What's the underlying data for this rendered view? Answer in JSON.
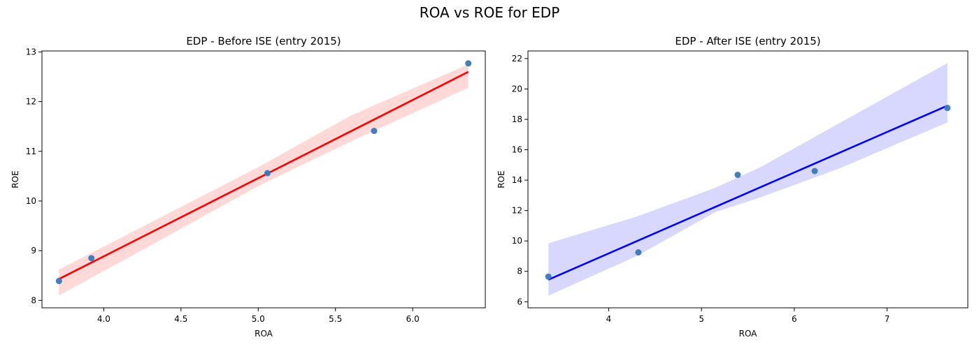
{
  "figure": {
    "title": "ROA vs ROE for EDP"
  },
  "chart_data": [
    {
      "type": "scatter",
      "title": "EDP - Before ISE (entry 2015)",
      "xlabel": "ROA",
      "ylabel": "ROE",
      "xlim": [
        3.6,
        6.47
      ],
      "ylim": [
        7.85,
        13.02
      ],
      "xticks": [
        "4.0",
        "4.5",
        "5.0",
        "5.5",
        "6.0"
      ],
      "yticks": [
        "8",
        "9",
        "10",
        "11",
        "12",
        "13"
      ],
      "points": [
        {
          "x": 3.71,
          "y": 8.39
        },
        {
          "x": 3.92,
          "y": 8.85
        },
        {
          "x": 5.06,
          "y": 10.56
        },
        {
          "x": 5.75,
          "y": 11.41
        },
        {
          "x": 6.36,
          "y": 12.77
        }
      ],
      "regression_line": {
        "x": [
          3.71,
          6.36
        ],
        "y": [
          8.43,
          12.6
        ]
      },
      "confidence_band": {
        "x": [
          3.71,
          4.3,
          5.0,
          5.6,
          6.36
        ],
        "lower": [
          8.1,
          9.1,
          10.3,
          11.2,
          12.28
        ],
        "upper": [
          8.62,
          9.56,
          10.68,
          11.72,
          12.75
        ]
      },
      "line_color": "#ff0000",
      "band_color": "#ffd8d8",
      "point_color": "#3a78b8",
      "grid": false
    },
    {
      "type": "scatter",
      "title": "EDP - After ISE (entry 2015)",
      "xlabel": "ROA",
      "ylabel": "ROE",
      "xlim": [
        3.13,
        7.87
      ],
      "ylim": [
        5.6,
        22.5
      ],
      "xticks": [
        "4",
        "5",
        "6",
        "7"
      ],
      "yticks": [
        "6",
        "8",
        "10",
        "12",
        "14",
        "16",
        "18",
        "20",
        "22"
      ],
      "points": [
        {
          "x": 3.35,
          "y": 7.65
        },
        {
          "x": 4.32,
          "y": 9.25
        },
        {
          "x": 5.39,
          "y": 14.35
        },
        {
          "x": 6.22,
          "y": 14.6
        },
        {
          "x": 7.65,
          "y": 18.75
        }
      ],
      "regression_line": {
        "x": [
          3.35,
          7.65
        ],
        "y": [
          7.45,
          18.9
        ]
      },
      "confidence_band": {
        "x": [
          3.35,
          4.3,
          5.15,
          5.65,
          6.5,
          7.65
        ],
        "lower": [
          6.4,
          9.0,
          11.9,
          12.9,
          14.8,
          17.8
        ],
        "upper": [
          9.85,
          11.6,
          13.5,
          14.9,
          17.8,
          21.7
        ]
      },
      "line_color": "#0000ff",
      "band_color": "#d8d8ff",
      "point_color": "#3a78b8",
      "grid": false
    }
  ]
}
